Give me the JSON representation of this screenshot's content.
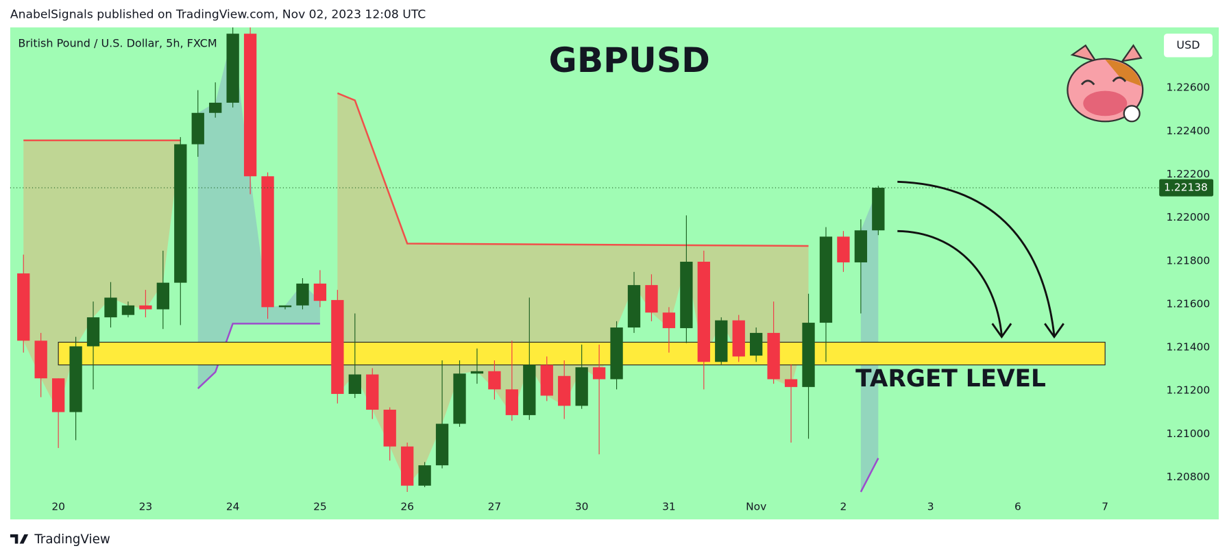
{
  "chart_data": {
    "type": "candlestick",
    "header": "AnabelSignals published on TradingView.com, Nov 02, 2023 12:08 UTC",
    "title": "GBPUSD",
    "subtitle": "British Pound / U.S. Dollar, 5h, FXCM",
    "currency": "USD",
    "annotation": "TARGET LEVEL",
    "footer": "TradingView",
    "background": "#a0fcb4",
    "up_color": "#1b5e20",
    "down_color": "#f23645",
    "last_price": 1.22138,
    "last_price_color": "#1b5e20",
    "x": [
      0,
      1,
      2,
      3,
      4,
      5,
      6,
      7,
      8,
      9,
      10,
      11,
      12,
      13,
      14,
      15,
      16,
      17,
      18,
      19,
      20,
      21,
      22,
      23,
      24,
      25,
      26,
      27,
      28,
      29,
      30,
      31,
      32,
      33,
      34,
      35,
      36,
      37,
      38,
      39,
      40,
      41,
      42,
      43,
      44,
      45,
      46,
      47,
      48,
      49
    ],
    "open": [
      1.21742,
      1.21431,
      1.21257,
      1.21101,
      1.21405,
      1.21539,
      1.2155,
      1.21594,
      1.21576,
      1.21699,
      1.22339,
      1.22484,
      1.22531,
      1.2285,
      1.22191,
      1.21586,
      1.21594,
      1.21695,
      1.21619,
      1.21185,
      1.21275,
      1.21112,
      1.20942,
      1.20761,
      1.20855,
      1.21047,
      1.21279,
      1.2129,
      1.21206,
      1.21087,
      1.21319,
      1.21268,
      1.2113,
      1.21308,
      1.21253,
      1.21492,
      1.21688,
      1.21561,
      1.21489,
      1.21796,
      1.21333,
      1.21525,
      1.21362,
      1.21467,
      1.21253,
      1.21217,
      1.21514,
      1.21912,
      1.21793,
      1.21941
    ],
    "high": [
      1.21829,
      1.21467,
      1.21257,
      1.21449,
      1.21612,
      1.21702,
      1.21612,
      1.21666,
      1.21847,
      1.22372,
      1.22589,
      1.22625,
      1.22879,
      1.22879,
      1.22209,
      1.21594,
      1.2172,
      1.21757,
      1.21666,
      1.21557,
      1.21304,
      1.21123,
      1.2096,
      1.2087,
      1.2134,
      1.2134,
      1.21395,
      1.2134,
      1.21431,
      1.2163,
      1.21358,
      1.2134,
      1.21413,
      1.21413,
      1.21521,
      1.21749,
      1.21738,
      1.21586,
      1.2201,
      1.21847,
      1.21539,
      1.2155,
      1.21492,
      1.21612,
      1.21322,
      1.21648,
      1.21956,
      1.21938,
      1.21992,
      1.22147
    ],
    "low": [
      1.21376,
      1.2117,
      1.20935,
      1.20971,
      1.21206,
      1.21492,
      1.21539,
      1.21539,
      1.21485,
      1.21503,
      1.22281,
      1.22462,
      1.22509,
      1.22108,
      1.21532,
      1.21576,
      1.21576,
      1.21586,
      1.21141,
      1.21166,
      1.21069,
      1.20877,
      1.20732,
      1.20754,
      1.20841,
      1.21033,
      1.21232,
      1.21159,
      1.21061,
      1.21065,
      1.21152,
      1.21069,
      1.21116,
      1.20906,
      1.21206,
      1.21467,
      1.21521,
      1.21376,
      1.2142,
      1.21206,
      1.21322,
      1.21333,
      1.21333,
      1.21232,
      1.2096,
      1.20978,
      1.21333,
      1.21749,
      1.21557,
      1.21919
    ],
    "close": [
      1.21431,
      1.21257,
      1.21101,
      1.21405,
      1.21539,
      1.2163,
      1.21594,
      1.21576,
      1.21699,
      1.22339,
      1.22484,
      1.22531,
      1.2285,
      1.22191,
      1.21586,
      1.21594,
      1.21695,
      1.21615,
      1.21185,
      1.21275,
      1.21112,
      1.20942,
      1.20761,
      1.20855,
      1.21047,
      1.21279,
      1.2129,
      1.21206,
      1.21087,
      1.21319,
      1.21177,
      1.2113,
      1.21308,
      1.21253,
      1.21492,
      1.21688,
      1.21561,
      1.21489,
      1.21796,
      1.21333,
      1.21525,
      1.21358,
      1.21467,
      1.21253,
      1.21217,
      1.21514,
      1.21912,
      1.21793,
      1.21941,
      1.22138
    ],
    "indicators": [
      {
        "color": "#f0504a",
        "fill": "#c9c98a",
        "x": [
          0,
          9
        ],
        "values": [
          1.22357,
          1.22357
        ]
      },
      {
        "color": "#f0504a",
        "fill": "#c9c98a",
        "x": [
          18,
          19,
          22,
          45
        ],
        "values": [
          1.22575,
          1.22542,
          1.2188,
          1.21869
        ]
      },
      {
        "color": "#9c4dcc",
        "fill": "#8fc9c0",
        "x": [
          10,
          11,
          12,
          17
        ],
        "values": [
          1.2121,
          1.21286,
          1.2151,
          1.2151
        ]
      },
      {
        "color": "#9c4dcc",
        "fill": "#8fc9c0",
        "x": [
          48,
          49
        ],
        "values": [
          1.20732,
          1.20888
        ]
      }
    ],
    "target_zone": {
      "color": "#ffeb3b",
      "low": 1.21319,
      "high": 1.21424,
      "x": [
        2,
        62
      ]
    },
    "xlim": [
      -0.76,
      64.7
    ],
    "xticks": [
      {
        "value": 2,
        "label": "20"
      },
      {
        "value": 7,
        "label": "23"
      },
      {
        "value": 12,
        "label": "24"
      },
      {
        "value": 17,
        "label": "25"
      },
      {
        "value": 22,
        "label": "26"
      },
      {
        "value": 27,
        "label": "27"
      },
      {
        "value": 32,
        "label": "30"
      },
      {
        "value": 37,
        "label": "31"
      },
      {
        "value": 42,
        "label": "Nov"
      },
      {
        "value": 47,
        "label": "2"
      },
      {
        "value": 52,
        "label": "3"
      },
      {
        "value": 57,
        "label": "6"
      },
      {
        "value": 62,
        "label": "7"
      }
    ],
    "ylim": [
      1.20605,
      1.22879
    ],
    "yticks": [
      {
        "value": 1.208,
        "label": "1.20800"
      },
      {
        "value": 1.21,
        "label": "1.21000"
      },
      {
        "value": 1.212,
        "label": "1.21200"
      },
      {
        "value": 1.214,
        "label": "1.21400"
      },
      {
        "value": 1.216,
        "label": "1.21600"
      },
      {
        "value": 1.218,
        "label": "1.21800"
      },
      {
        "value": 1.22,
        "label": "1.22000"
      },
      {
        "value": 1.222,
        "label": "1.22200"
      },
      {
        "value": 1.224,
        "label": "1.22400"
      },
      {
        "value": 1.226,
        "label": "1.22600"
      }
    ]
  }
}
